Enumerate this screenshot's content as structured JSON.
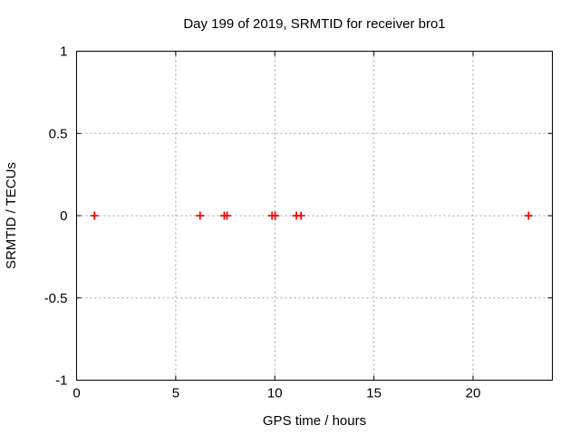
{
  "chart_data": {
    "type": "scatter",
    "title": "Day 199 of 2019, SRMTID for receiver bro1",
    "xlabel": "GPS time / hours",
    "ylabel": "SRMTID / TECUs",
    "xlim": [
      0,
      24
    ],
    "ylim": [
      -1,
      1
    ],
    "xticks": [
      0,
      5,
      10,
      15,
      20
    ],
    "yticks": [
      -1,
      -0.5,
      0,
      0.5,
      1
    ],
    "grid": true,
    "legend": "none",
    "grid_color": "#a0a0a0",
    "border_color": "#000000",
    "series": [
      {
        "name": "SRMTID",
        "marker": "plus",
        "color": "#ff0000",
        "x": [
          0.9,
          6.23,
          7.45,
          7.59,
          9.86,
          10.02,
          11.09,
          11.32,
          22.8
        ],
        "y": [
          0,
          0,
          0,
          0,
          0,
          0,
          0,
          0,
          0
        ]
      }
    ]
  }
}
